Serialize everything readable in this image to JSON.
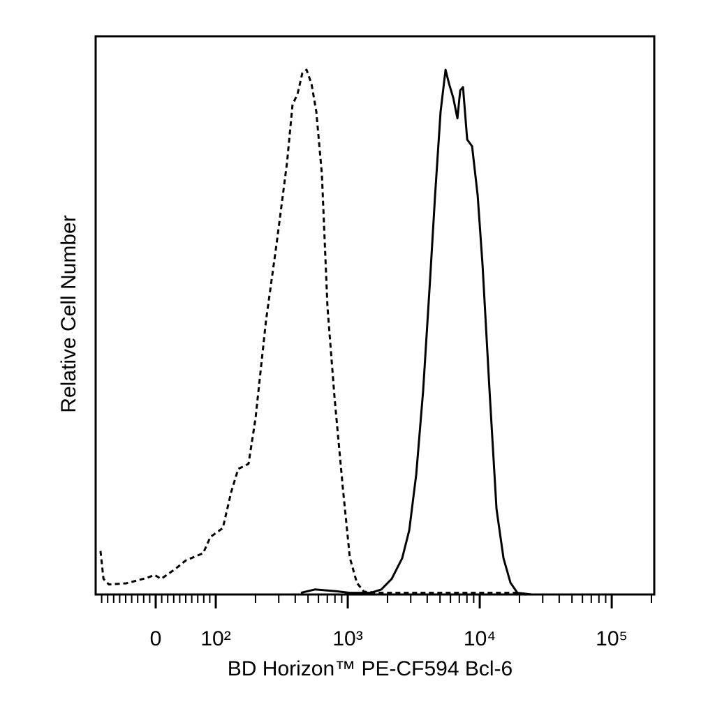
{
  "chart_data": {
    "type": "line",
    "x_label": "BD Horizon™ PE-CF594 Bcl-6",
    "y_label": "Relative Cell Number",
    "xscale": "biexponential",
    "xlim": [
      -100,
      210000
    ],
    "ylim": [
      0,
      100
    ],
    "xticks": [
      0,
      {
        "value": 100,
        "label": "10²"
      },
      {
        "value": 1000,
        "label": "10³"
      },
      {
        "value": 10000,
        "label": "10⁴"
      },
      {
        "value": 100000,
        "label": "10⁵"
      }
    ],
    "xminorticks": [
      -90,
      -80,
      -70,
      -60,
      -50,
      -40,
      -30,
      -20,
      -10,
      10,
      20,
      30,
      40,
      50,
      60,
      70,
      80,
      90,
      200,
      300,
      400,
      500,
      600,
      700,
      800,
      900,
      2000,
      3000,
      4000,
      5000,
      6000,
      7000,
      8000,
      9000,
      20000,
      30000,
      40000,
      50000,
      60000,
      70000,
      80000,
      90000,
      200000
    ],
    "series": [
      {
        "color": "#000000",
        "line_style": "dashed",
        "x": [
          -92,
          -87,
          -78,
          -49,
          -14,
          -2,
          9,
          33,
          50,
          79,
          91,
          113,
          131,
          148,
          177,
          200,
          240,
          289,
          347,
          382,
          416,
          453,
          487,
          531,
          578,
          637,
          702,
          794,
          918,
          1037,
          1172,
          1324,
          1795,
          19300,
          24600
        ],
        "values": [
          7.8,
          2.8,
          1.8,
          2,
          3,
          3.5,
          2.8,
          4.6,
          6.1,
          7.4,
          10.3,
          11.9,
          18.4,
          22.5,
          23.4,
          31.5,
          49,
          62.8,
          77.5,
          87.8,
          89.6,
          93.4,
          94,
          91.5,
          86.5,
          75.3,
          51.5,
          35.3,
          19.1,
          6.6,
          2.1,
          0.5,
          0.3,
          0.3,
          0
        ]
      },
      {
        "color": "#000000",
        "line_style": "solid",
        "x": [
          442,
          564,
          813,
          1037,
          1495,
          1795,
          2154,
          2586,
          2922,
          3300,
          3727,
          4210,
          4586,
          5054,
          5504,
          5851,
          6295,
          6771,
          7111,
          7464,
          8035,
          8750,
          9640,
          10500,
          11860,
          13400,
          15140,
          17100,
          19300,
          24600
        ],
        "values": [
          0.3,
          0.9,
          0.6,
          0.3,
          0.3,
          0.9,
          2.8,
          6.5,
          11.5,
          21.5,
          36.5,
          56.5,
          71.5,
          86.5,
          94,
          91.5,
          89,
          85.3,
          90.3,
          90.9,
          81.5,
          80.3,
          71.5,
          59,
          36.5,
          15.3,
          6.5,
          2.1,
          0.3,
          0
        ]
      }
    ]
  }
}
